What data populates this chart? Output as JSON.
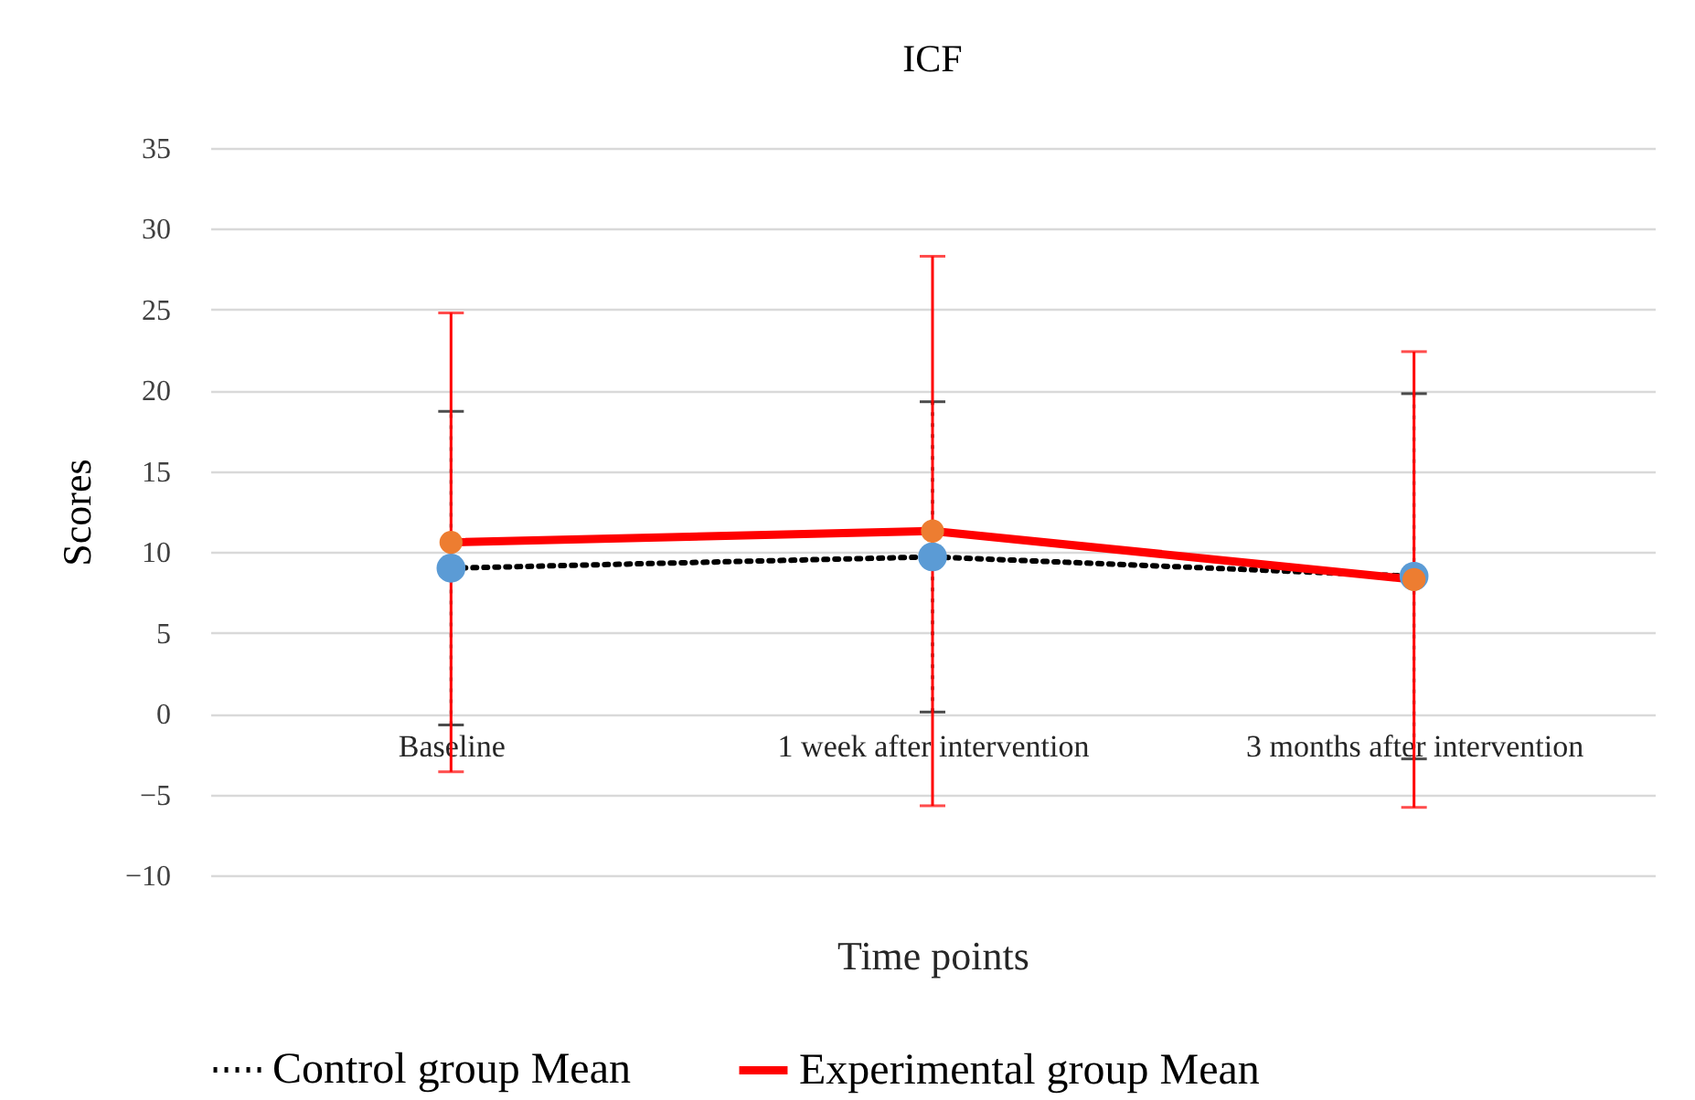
{
  "chart_data": {
    "type": "line",
    "title": "ICF",
    "xlabel": "Time points",
    "ylabel": "Scores",
    "categories": [
      "Baseline",
      "1 week after intervention",
      "3 months after intervention"
    ],
    "series": [
      {
        "name": "Control group Mean",
        "color": "#000000",
        "colors": [
          "#5b9bd5",
          "#5b9bd5",
          "#5b9bd5"
        ],
        "line_style": "dotted",
        "values": [
          9.0,
          9.7,
          8.5
        ],
        "errors": [
          9.7,
          9.6,
          11.3
        ]
      },
      {
        "name": "Experimental group Mean",
        "color": "#ff0000",
        "colors": [
          "#ed7d31",
          "#ed7d31",
          "#ed7d31"
        ],
        "line_style": "solid",
        "values": [
          10.6,
          11.3,
          8.3
        ],
        "errors": [
          14.2,
          17.0,
          14.1
        ]
      }
    ],
    "ylim": [
      -10,
      35
    ],
    "yticks": [
      -10,
      -5,
      0,
      5,
      10,
      15,
      20,
      25,
      30,
      35
    ],
    "grid": "y",
    "legend": "bottom",
    "marker": "circle"
  }
}
